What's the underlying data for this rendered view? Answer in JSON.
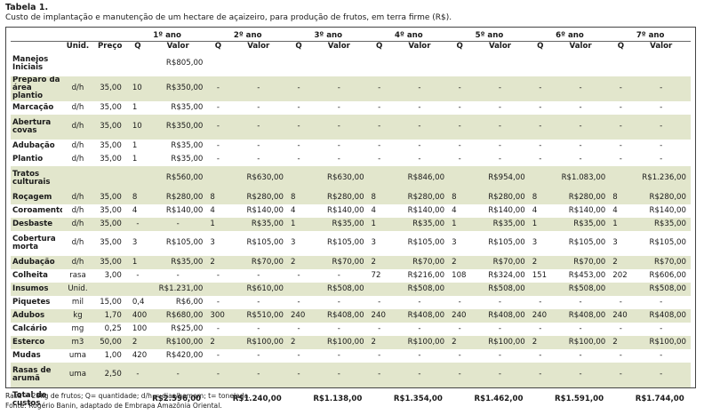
{
  "caption": {
    "title": "Tabela 1.",
    "subtitle": "Custo de implantação e manutenção de um hectare de açaizeiro, para produção de frutos, em terra firme (R$)."
  },
  "headers": {
    "years": [
      "1º ano",
      "2º ano",
      "3º ano",
      "4º ano",
      "5º ano",
      "6º ano",
      "7º ano"
    ],
    "unid": "Unid.",
    "preco": "Preço",
    "q": "Q",
    "valor": "Valor"
  },
  "rows": [
    {
      "label": "Manejos Iniciais",
      "unid": "",
      "preco": "",
      "cells": [
        [
          "",
          "R$805,00"
        ],
        [
          "",
          ""
        ],
        [
          "",
          ""
        ],
        [
          "",
          ""
        ],
        [
          "",
          ""
        ],
        [
          "",
          ""
        ],
        [
          "",
          ""
        ]
      ]
    },
    {
      "label": "Preparo da área plantio",
      "unid": "d/h",
      "preco": "35,00",
      "cells": [
        [
          "10",
          "R$350,00"
        ],
        [
          "-",
          "-"
        ],
        [
          "-",
          "-"
        ],
        [
          "-",
          "-"
        ],
        [
          "-",
          "-"
        ],
        [
          "-",
          "-"
        ],
        [
          "-",
          "-"
        ]
      ]
    },
    {
      "label": "Marcação",
      "unid": "d/h",
      "preco": "35,00",
      "cells": [
        [
          "1",
          "R$35,00"
        ],
        [
          "-",
          "-"
        ],
        [
          "-",
          "-"
        ],
        [
          "-",
          "-"
        ],
        [
          "-",
          "-"
        ],
        [
          "-",
          "-"
        ],
        [
          "-",
          "-"
        ]
      ]
    },
    {
      "label": "Abertura covas",
      "unid": "d/h",
      "preco": "35,00",
      "cells": [
        [
          "10",
          "R$350,00"
        ],
        [
          "-",
          "-"
        ],
        [
          "-",
          "-"
        ],
        [
          "-",
          "-"
        ],
        [
          "-",
          "-"
        ],
        [
          "-",
          "-"
        ],
        [
          "-",
          "-"
        ]
      ]
    },
    {
      "label": "Adubação",
      "unid": "d/h",
      "preco": "35,00",
      "cells": [
        [
          "1",
          "R$35,00"
        ],
        [
          "-",
          "-"
        ],
        [
          "-",
          "-"
        ],
        [
          "-",
          "-"
        ],
        [
          "-",
          "-"
        ],
        [
          "-",
          "-"
        ],
        [
          "-",
          "-"
        ]
      ]
    },
    {
      "label": "Plantio",
      "unid": "d/h",
      "preco": "35,00",
      "cells": [
        [
          "1",
          "R$35,00"
        ],
        [
          "-",
          "-"
        ],
        [
          "-",
          "-"
        ],
        [
          "-",
          "-"
        ],
        [
          "-",
          "-"
        ],
        [
          "-",
          "-"
        ],
        [
          "-",
          "-"
        ]
      ]
    },
    {
      "label": "Tratos culturais",
      "unid": "",
      "preco": "",
      "cells": [
        [
          "",
          "R$560,00"
        ],
        [
          "",
          "R$630,00"
        ],
        [
          "",
          "R$630,00"
        ],
        [
          "",
          "R$846,00"
        ],
        [
          "",
          "R$954,00"
        ],
        [
          "",
          "R$1.083,00"
        ],
        [
          "",
          "R$1.236,00"
        ]
      ]
    },
    {
      "label": "Roçagem",
      "unid": "d/h",
      "preco": "35,00",
      "cells": [
        [
          "8",
          "R$280,00"
        ],
        [
          "8",
          "R$280,00"
        ],
        [
          "8",
          "R$280,00"
        ],
        [
          "8",
          "R$280,00"
        ],
        [
          "8",
          "R$280,00"
        ],
        [
          "8",
          "R$280,00"
        ],
        [
          "8",
          "R$280,00"
        ]
      ]
    },
    {
      "label": "Coroamento",
      "unid": "d/h",
      "preco": "35,00",
      "cells": [
        [
          "4",
          "R$140,00"
        ],
        [
          "4",
          "R$140,00"
        ],
        [
          "4",
          "R$140,00"
        ],
        [
          "4",
          "R$140,00"
        ],
        [
          "4",
          "R$140,00"
        ],
        [
          "4",
          "R$140,00"
        ],
        [
          "4",
          "R$140,00"
        ]
      ]
    },
    {
      "label": "Desbaste",
      "unid": "d/h",
      "preco": "35,00",
      "cells": [
        [
          "-",
          "-"
        ],
        [
          "1",
          "R$35,00"
        ],
        [
          "1",
          "R$35,00"
        ],
        [
          "1",
          "R$35,00"
        ],
        [
          "1",
          "R$35,00"
        ],
        [
          "1",
          "R$35,00"
        ],
        [
          "1",
          "R$35,00"
        ]
      ]
    },
    {
      "label": "Cobertura morta",
      "unid": "d/h",
      "preco": "35,00",
      "cells": [
        [
          "3",
          "R$105,00"
        ],
        [
          "3",
          "R$105,00"
        ],
        [
          "3",
          "R$105,00"
        ],
        [
          "3",
          "R$105,00"
        ],
        [
          "3",
          "R$105,00"
        ],
        [
          "3",
          "R$105,00"
        ],
        [
          "3",
          "R$105,00"
        ]
      ]
    },
    {
      "label": "Adubação",
      "unid": "d/h",
      "preco": "35,00",
      "cells": [
        [
          "1",
          "R$35,00"
        ],
        [
          "2",
          "R$70,00"
        ],
        [
          "2",
          "R$70,00"
        ],
        [
          "2",
          "R$70,00"
        ],
        [
          "2",
          "R$70,00"
        ],
        [
          "2",
          "R$70,00"
        ],
        [
          "2",
          "R$70,00"
        ]
      ]
    },
    {
      "label": "Colheita",
      "unid": "rasa",
      "preco": "3,00",
      "cells": [
        [
          "-",
          "-"
        ],
        [
          "-",
          "-"
        ],
        [
          "-",
          "-"
        ],
        [
          "72",
          "R$216,00"
        ],
        [
          "108",
          "R$324,00"
        ],
        [
          "151",
          "R$453,00"
        ],
        [
          "202",
          "R$606,00"
        ]
      ]
    },
    {
      "label": "Insumos",
      "unid": "Unid.",
      "preco": "",
      "cells": [
        [
          "",
          "R$1.231,00"
        ],
        [
          "",
          "R$610,00"
        ],
        [
          "",
          "R$508,00"
        ],
        [
          "",
          "R$508,00"
        ],
        [
          "",
          "R$508,00"
        ],
        [
          "",
          "R$508,00"
        ],
        [
          "",
          "R$508,00"
        ]
      ]
    },
    {
      "label": "Piquetes",
      "unid": "mil",
      "preco": "15,00",
      "cells": [
        [
          "0,4",
          "R$6,00"
        ],
        [
          "-",
          "-"
        ],
        [
          "-",
          "-"
        ],
        [
          "-",
          "-"
        ],
        [
          "-",
          "-"
        ],
        [
          "-",
          "-"
        ],
        [
          "-",
          "-"
        ]
      ]
    },
    {
      "label": "Adubos",
      "unid": "kg",
      "preco": "1,70",
      "cells": [
        [
          "400",
          "R$680,00"
        ],
        [
          "300",
          "R$510,00"
        ],
        [
          "240",
          "R$408,00"
        ],
        [
          "240",
          "R$408,00"
        ],
        [
          "240",
          "R$408,00"
        ],
        [
          "240",
          "R$408,00"
        ],
        [
          "240",
          "R$408,00"
        ]
      ]
    },
    {
      "label": "Calcário",
      "unid": "mg",
      "preco": "0,25",
      "cells": [
        [
          "100",
          "R$25,00"
        ],
        [
          "-",
          "-"
        ],
        [
          "-",
          "-"
        ],
        [
          "-",
          "-"
        ],
        [
          "-",
          "-"
        ],
        [
          "-",
          "-"
        ],
        [
          "-",
          "-"
        ]
      ]
    },
    {
      "label": "Esterco",
      "unid": "m3",
      "preco": "50,00",
      "cells": [
        [
          "2",
          "R$100,00"
        ],
        [
          "2",
          "R$100,00"
        ],
        [
          "2",
          "R$100,00"
        ],
        [
          "2",
          "R$100,00"
        ],
        [
          "2",
          "R$100,00"
        ],
        [
          "2",
          "R$100,00"
        ],
        [
          "2",
          "R$100,00"
        ]
      ]
    },
    {
      "label": "Mudas",
      "unid": "uma",
      "preco": "1,00",
      "cells": [
        [
          "420",
          "R$420,00"
        ],
        [
          "-",
          "-"
        ],
        [
          "-",
          "-"
        ],
        [
          "-",
          "-"
        ],
        [
          "-",
          "-"
        ],
        [
          "-",
          "-"
        ],
        [
          "-",
          "-"
        ]
      ]
    },
    {
      "label": "Rasas de arumã",
      "unid": "uma",
      "preco": "2,50",
      "cells": [
        [
          "-",
          "-"
        ],
        [
          "-",
          "-"
        ],
        [
          "-",
          "-"
        ],
        [
          "-",
          "-"
        ],
        [
          "-",
          "-"
        ],
        [
          "-",
          "-"
        ],
        [
          "-",
          "-"
        ]
      ]
    },
    {
      "label": "Total de custos",
      "unid": "",
      "preco": "",
      "cells": [
        [
          "",
          "R$2.596,00"
        ],
        [
          "",
          "R$1.240,00"
        ],
        [
          "",
          "R$1.138,00"
        ],
        [
          "",
          "R$1.354,00"
        ],
        [
          "",
          "R$1.462,00"
        ],
        [
          "",
          "R$1.591,00"
        ],
        [
          "",
          "R$1.744,00"
        ]
      ]
    }
  ],
  "footnotes": {
    "legend": "Rasa = 28kg de frutos; Q= quantidade; d/h = dias/homem; t= tonelada.",
    "source": "Fonte: Rogério Banin, adaptado de Embrapa Amazônia Oriental."
  },
  "colors": {
    "row_shade": "#e2e6cc",
    "border": "#444444"
  }
}
